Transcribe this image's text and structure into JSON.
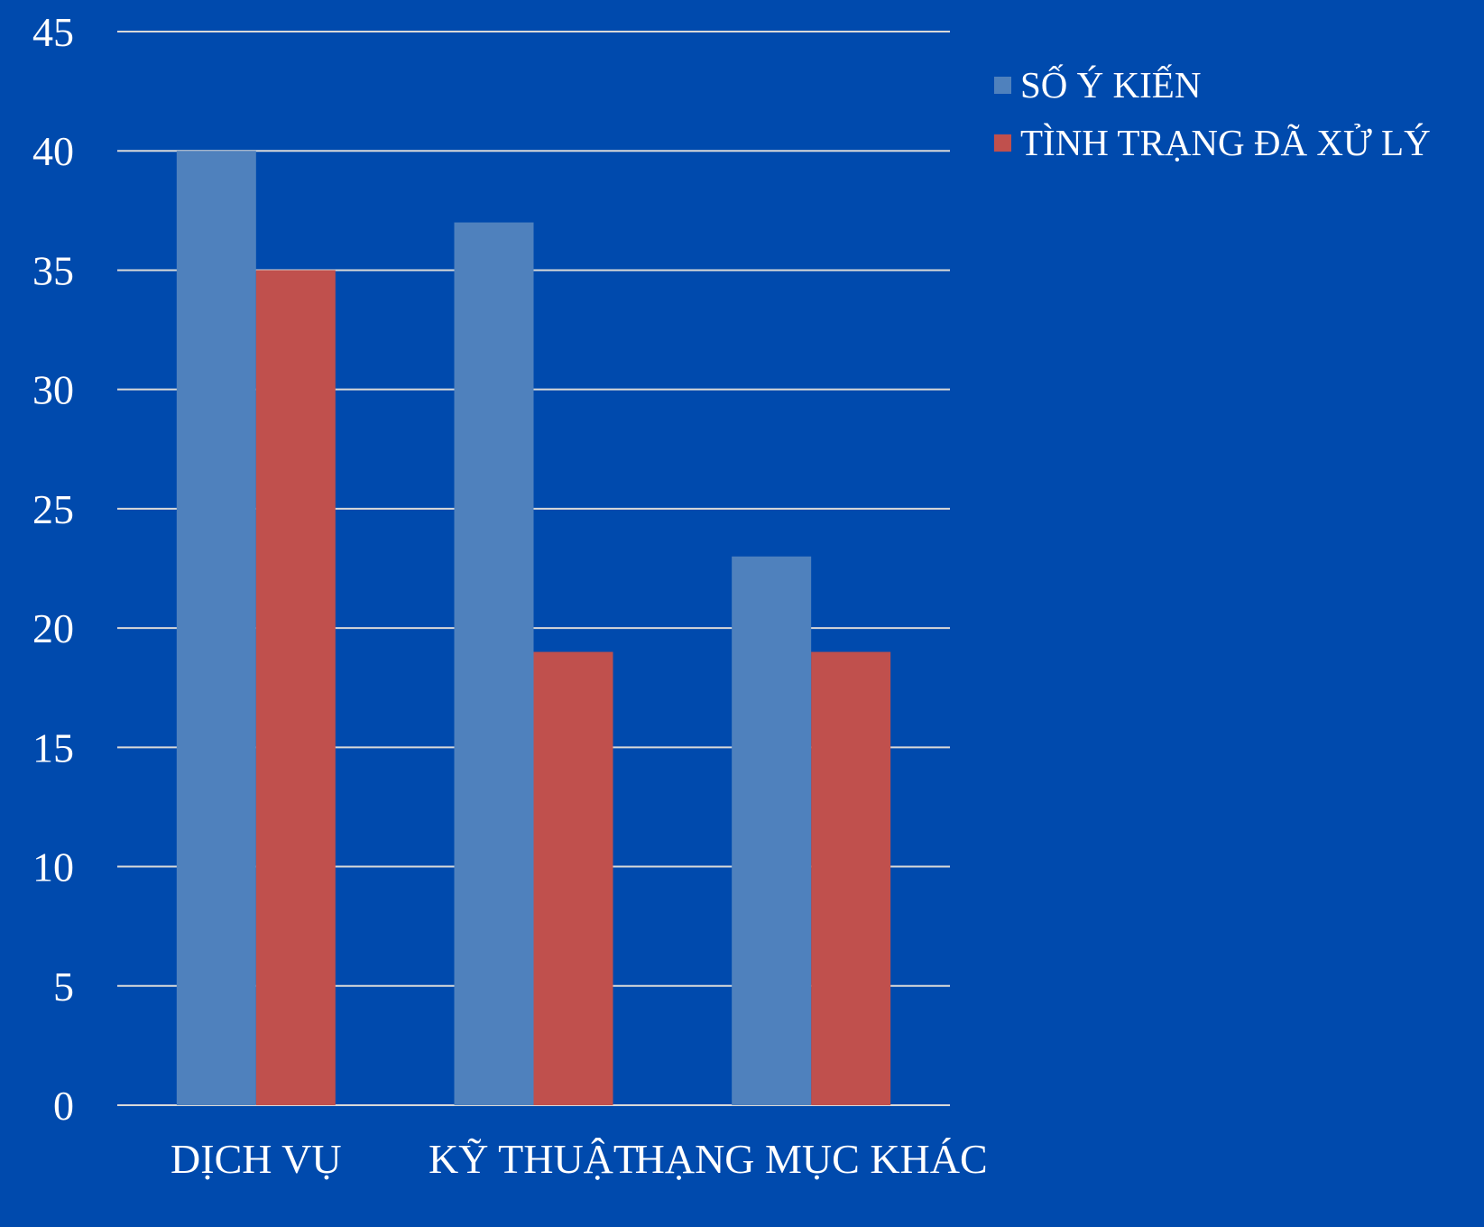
{
  "chart_data": {
    "type": "bar",
    "categories": [
      "DỊCH VỤ",
      "KỸ THUẬT",
      "HẠNG MỤC KHÁC"
    ],
    "series": [
      {
        "name": "SỐ Ý KIẾN",
        "values": [
          40,
          37,
          23
        ],
        "color": "#4f81bd"
      },
      {
        "name": "TÌNH TRẠNG ĐÃ XỬ LÝ",
        "values": [
          35,
          19,
          19
        ],
        "color": "#c0504d"
      }
    ],
    "title": "",
    "xlabel": "",
    "ylabel": "",
    "ylim": [
      0,
      45
    ],
    "yticks": [
      0,
      5,
      10,
      15,
      20,
      25,
      30,
      35,
      40,
      45
    ],
    "grid": true,
    "legend_position": "top-right",
    "colors": {
      "background": "#004aad",
      "gridline": "#d9d9d9",
      "text": "#ffffff"
    }
  }
}
